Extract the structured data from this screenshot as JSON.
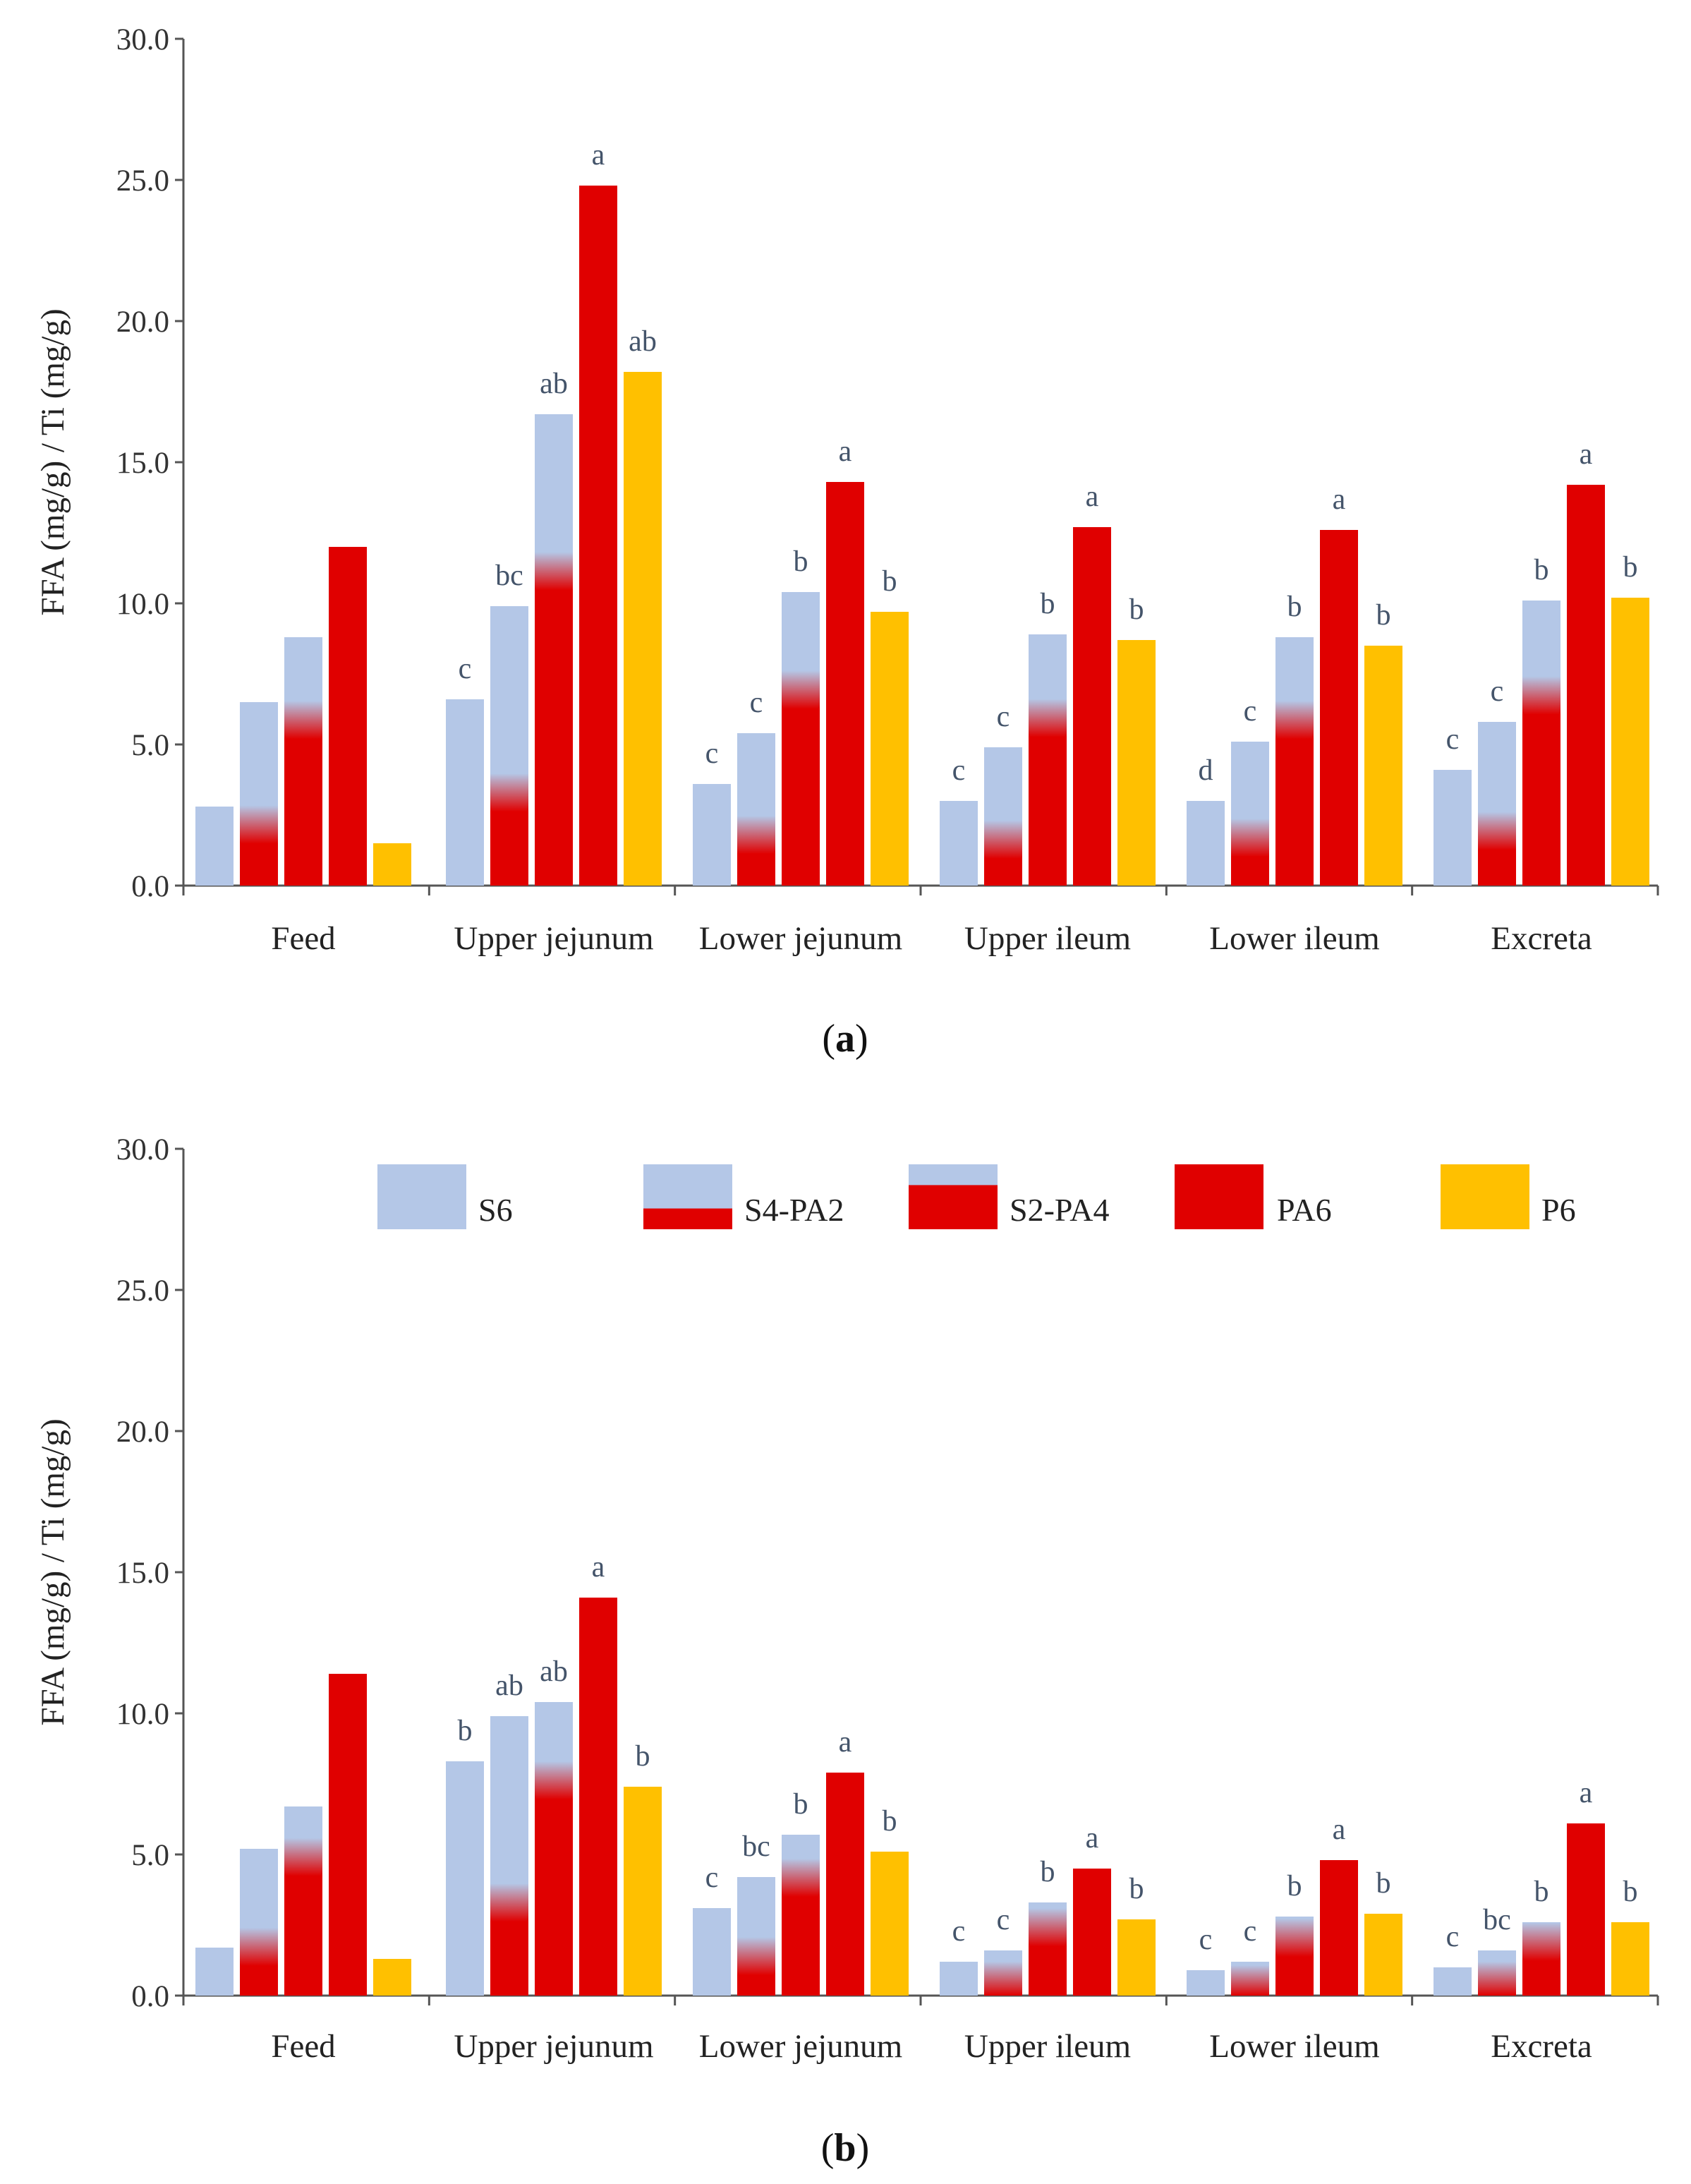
{
  "colors": {
    "S": "#b4c7e7",
    "PA": "#e00000",
    "P6": "#ffc000",
    "axis": "#555555",
    "sig_text": "#44546a"
  },
  "legend": {
    "items": [
      {
        "label": "S6",
        "style": "S"
      },
      {
        "label": "S4-PA2",
        "style": "S4"
      },
      {
        "label": "S2-PA4",
        "style": "S2"
      },
      {
        "label": "PA6",
        "style": "PA"
      },
      {
        "label": "P6",
        "style": "P6"
      }
    ]
  },
  "chart_data": [
    {
      "type": "bar",
      "panel_label": "a",
      "ylabel": "FFA (mg/g) / Ti (mg/g)",
      "ylim": [
        0,
        30
      ],
      "yticks": [
        "0.0",
        "5.0",
        "10.0",
        "15.0",
        "20.0",
        "25.0",
        "30.0"
      ],
      "categories": [
        "Feed",
        "Upper jejunum",
        "Lower jejunum",
        "Upper ileum",
        "Lower ileum",
        "Excreta"
      ],
      "series": [
        {
          "name": "S6",
          "values": [
            2.8,
            6.6,
            3.6,
            3.0,
            3.0,
            4.1
          ],
          "pa_fraction": 0
        },
        {
          "name": "S4-PA2",
          "values": [
            6.5,
            9.9,
            5.4,
            4.9,
            5.1,
            5.8
          ],
          "pa_fraction": 0.333
        },
        {
          "name": "S2-PA4",
          "values": [
            8.8,
            16.7,
            10.4,
            8.9,
            8.8,
            10.1
          ],
          "pa_fraction": 0.667
        },
        {
          "name": "PA6",
          "values": [
            12.0,
            24.8,
            14.3,
            12.7,
            12.6,
            14.2
          ],
          "pa_fraction": 1
        },
        {
          "name": "P6",
          "values": [
            1.5,
            18.2,
            9.7,
            8.7,
            8.5,
            10.2
          ],
          "pa_fraction": 0
        }
      ],
      "significance": [
        [
          "",
          "",
          "",
          "",
          ""
        ],
        [
          "c",
          "bc",
          "ab",
          "a",
          "ab"
        ],
        [
          "c",
          "c",
          "b",
          "a",
          "b"
        ],
        [
          "c",
          "c",
          "b",
          "a",
          "b"
        ],
        [
          "d",
          "c",
          "b",
          "a",
          "b"
        ],
        [
          "c",
          "c",
          "b",
          "a",
          "b"
        ]
      ]
    },
    {
      "type": "bar",
      "panel_label": "b",
      "ylabel": "FFA (mg/g) / Ti (mg/g)",
      "ylim": [
        0,
        30
      ],
      "yticks": [
        "0.0",
        "5.0",
        "10.0",
        "15.0",
        "20.0",
        "25.0",
        "30.0"
      ],
      "categories": [
        "Feed",
        "Upper jejunum",
        "Lower jejunum",
        "Upper ileum",
        "Lower ileum",
        "Excreta"
      ],
      "series": [
        {
          "name": "S6",
          "values": [
            1.7,
            8.3,
            3.1,
            1.2,
            0.9,
            1.0
          ],
          "pa_fraction": 0
        },
        {
          "name": "S4-PA2",
          "values": [
            5.2,
            9.9,
            4.2,
            1.6,
            1.2,
            1.6
          ],
          "pa_fraction": 0.333
        },
        {
          "name": "S2-PA4",
          "values": [
            6.7,
            10.4,
            5.7,
            3.3,
            2.8,
            2.6
          ],
          "pa_fraction": 0.733
        },
        {
          "name": "PA6",
          "values": [
            11.4,
            14.1,
            7.9,
            4.5,
            4.8,
            6.1
          ],
          "pa_fraction": 1
        },
        {
          "name": "P6",
          "values": [
            1.3,
            7.4,
            5.1,
            2.7,
            2.9,
            2.6
          ],
          "pa_fraction": 0
        }
      ],
      "significance": [
        [
          "",
          "",
          "",
          "",
          ""
        ],
        [
          "b",
          "ab",
          "ab",
          "a",
          "b"
        ],
        [
          "c",
          "bc",
          "b",
          "a",
          "b"
        ],
        [
          "c",
          "c",
          "b",
          "a",
          "b"
        ],
        [
          "c",
          "c",
          "b",
          "a",
          "b"
        ],
        [
          "c",
          "bc",
          "b",
          "a",
          "b"
        ]
      ]
    }
  ]
}
